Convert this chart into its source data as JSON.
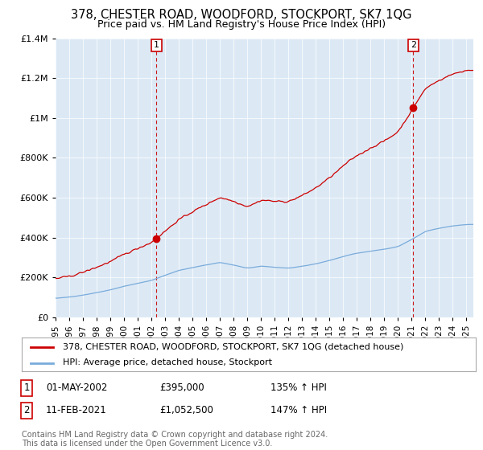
{
  "title": "378, CHESTER ROAD, WOODFORD, STOCKPORT, SK7 1QG",
  "subtitle": "Price paid vs. HM Land Registry's House Price Index (HPI)",
  "ylim": [
    0,
    1400000
  ],
  "yticks": [
    0,
    200000,
    400000,
    600000,
    800000,
    1000000,
    1200000,
    1400000
  ],
  "ytick_labels": [
    "£0",
    "£200K",
    "£400K",
    "£600K",
    "£800K",
    "£1M",
    "£1.2M",
    "£1.4M"
  ],
  "sale1_date": "01-MAY-2002",
  "sale1_price": 395000,
  "sale1_hpi": "135% ↑ HPI",
  "sale1_x": 2002.37,
  "sale2_date": "11-FEB-2021",
  "sale2_price": 1052500,
  "sale2_hpi": "147% ↑ HPI",
  "sale2_x": 2021.12,
  "legend_line1": "378, CHESTER ROAD, WOODFORD, STOCKPORT, SK7 1QG (detached house)",
  "legend_line2": "HPI: Average price, detached house, Stockport",
  "footer": "Contains HM Land Registry data © Crown copyright and database right 2024.\nThis data is licensed under the Open Government Licence v3.0.",
  "property_color": "#cc0000",
  "hpi_color": "#7aabdb",
  "background_color": "#ffffff",
  "plot_bg_color": "#dce9f5",
  "grid_color": "#ffffff"
}
